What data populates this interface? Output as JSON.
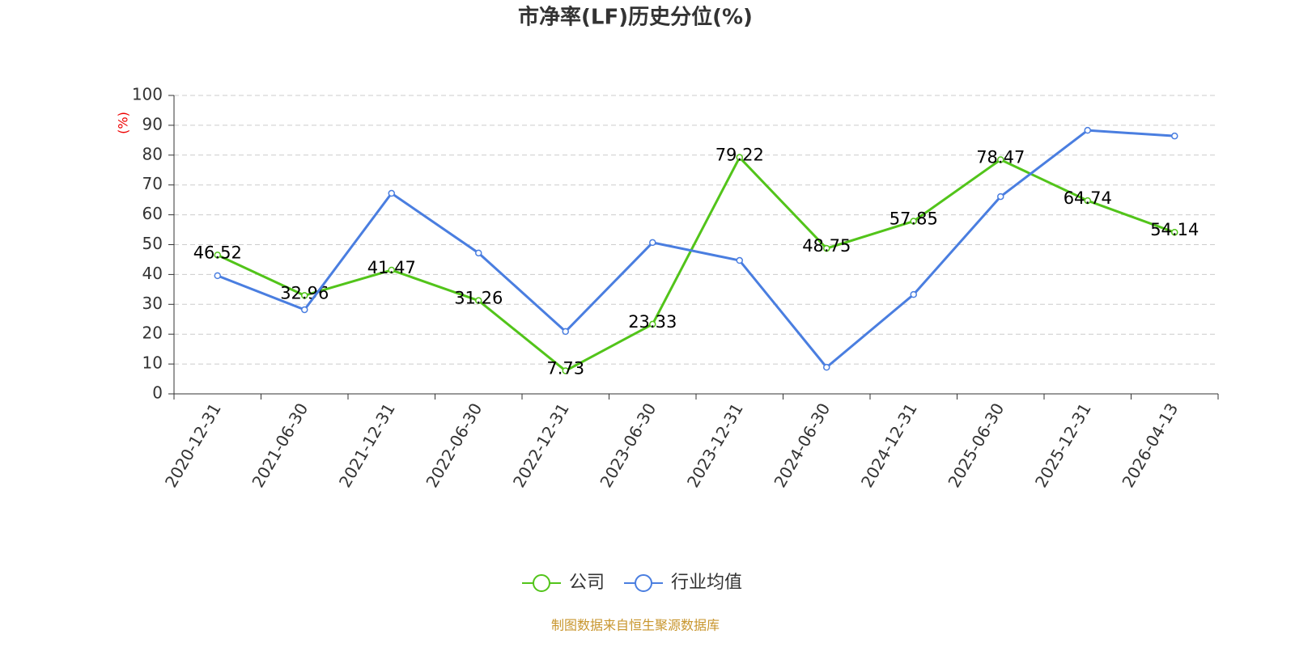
{
  "chart_data": {
    "type": "line",
    "title": "市净率(LF)历史分位(%)",
    "y_label": "(%)",
    "source": "制图数据来自恒生聚源数据库",
    "categories": [
      "2020-12-31",
      "2021-06-30",
      "2021-12-31",
      "2022-06-30",
      "2022-12-31",
      "2023-06-30",
      "2023-12-31",
      "2024-06-30",
      "2024-12-31",
      "2025-06-30",
      "2025-12-31",
      "2026-04-13"
    ],
    "series": [
      {
        "name": "公司",
        "color": "#52c41a",
        "values": [
          46.52,
          32.96,
          41.47,
          31.26,
          7.73,
          23.33,
          79.22,
          48.75,
          57.85,
          78.47,
          64.74,
          54.14
        ],
        "show_labels": true
      },
      {
        "name": "行业均值",
        "color": "#4a7ee0",
        "values": [
          39.6,
          28.2,
          67.2,
          47.2,
          20.9,
          50.7,
          44.7,
          8.9,
          33.3,
          66.1,
          88.3,
          86.4
        ],
        "show_labels": false
      }
    ],
    "ylim": [
      0,
      100
    ],
    "yticks": [
      0,
      10,
      20,
      30,
      40,
      50,
      60,
      70,
      80,
      90,
      100
    ],
    "grid": true,
    "legend": "bottom"
  }
}
